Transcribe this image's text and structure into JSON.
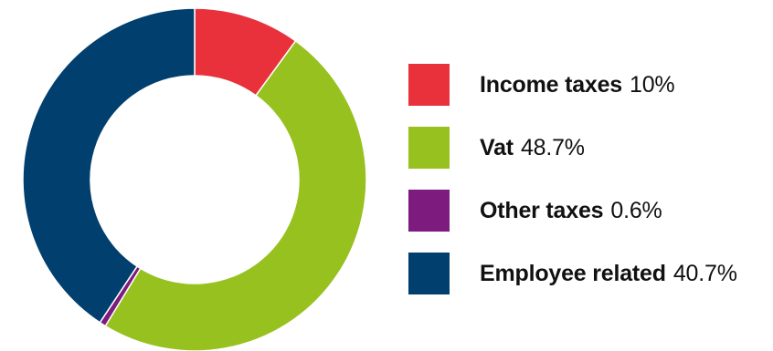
{
  "chart_data": {
    "type": "pie",
    "donut": true,
    "title": "",
    "categories": [
      "Income taxes",
      "Vat",
      "Other taxes",
      "Employee related"
    ],
    "values": [
      10,
      48.7,
      0.6,
      40.7
    ],
    "value_labels": [
      "10%",
      "48.7%",
      "0.6%",
      "40.7%"
    ],
    "unit": "%",
    "colors": [
      "#e8313b",
      "#97c11f",
      "#7d1b7e",
      "#003f6e"
    ],
    "start_angle_deg": 0,
    "direction": "clockwise",
    "legend_position": "right"
  }
}
